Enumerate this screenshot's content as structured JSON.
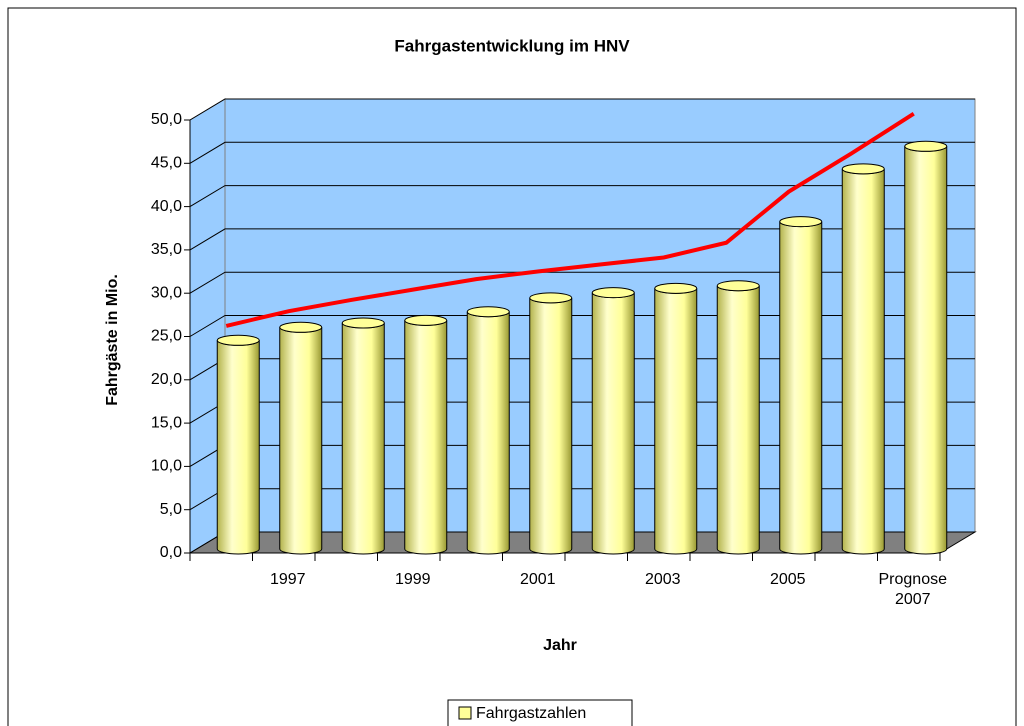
{
  "chart_data": {
    "type": "bar",
    "title": "Fahrgastentwicklung im HNV",
    "xlabel": "Jahr",
    "ylabel": "Fahrgäste in Mio.",
    "categories": [
      null,
      "1997",
      null,
      "1999",
      null,
      "2001",
      null,
      "2003",
      null,
      "2005",
      null,
      "Prognose 2007"
    ],
    "series": [
      {
        "name": "Fahrgastzahlen",
        "color": "#ffff99",
        "type": "bar",
        "values": [
          24.1,
          25.6,
          26.1,
          26.4,
          27.4,
          29.0,
          29.6,
          30.1,
          30.4,
          37.8,
          43.9,
          46.5
        ]
      },
      {
        "color": "#ff0000",
        "type": "line",
        "values": [
          23.8,
          25.5,
          26.8,
          28.0,
          29.2,
          30.1,
          30.9,
          31.7,
          33.4,
          39.3,
          43.7,
          48.3
        ]
      }
    ],
    "ylim": [
      0,
      50
    ],
    "yticks": [
      {
        "value": 0,
        "label": "0,0"
      },
      {
        "value": 5,
        "label": "5,0"
      },
      {
        "value": 10,
        "label": "10,0"
      },
      {
        "value": 15,
        "label": "15,0"
      },
      {
        "value": 20,
        "label": "20,0"
      },
      {
        "value": 25,
        "label": "25,0"
      },
      {
        "value": 30,
        "label": "30,0"
      },
      {
        "value": 35,
        "label": "35,0"
      },
      {
        "value": 40,
        "label": "40,0"
      },
      {
        "value": 45,
        "label": "45,0"
      },
      {
        "value": 50,
        "label": "50,0"
      }
    ],
    "grid": true,
    "wall_color": "#99ccff",
    "floor_color": "#808080",
    "legend": "bottom"
  }
}
